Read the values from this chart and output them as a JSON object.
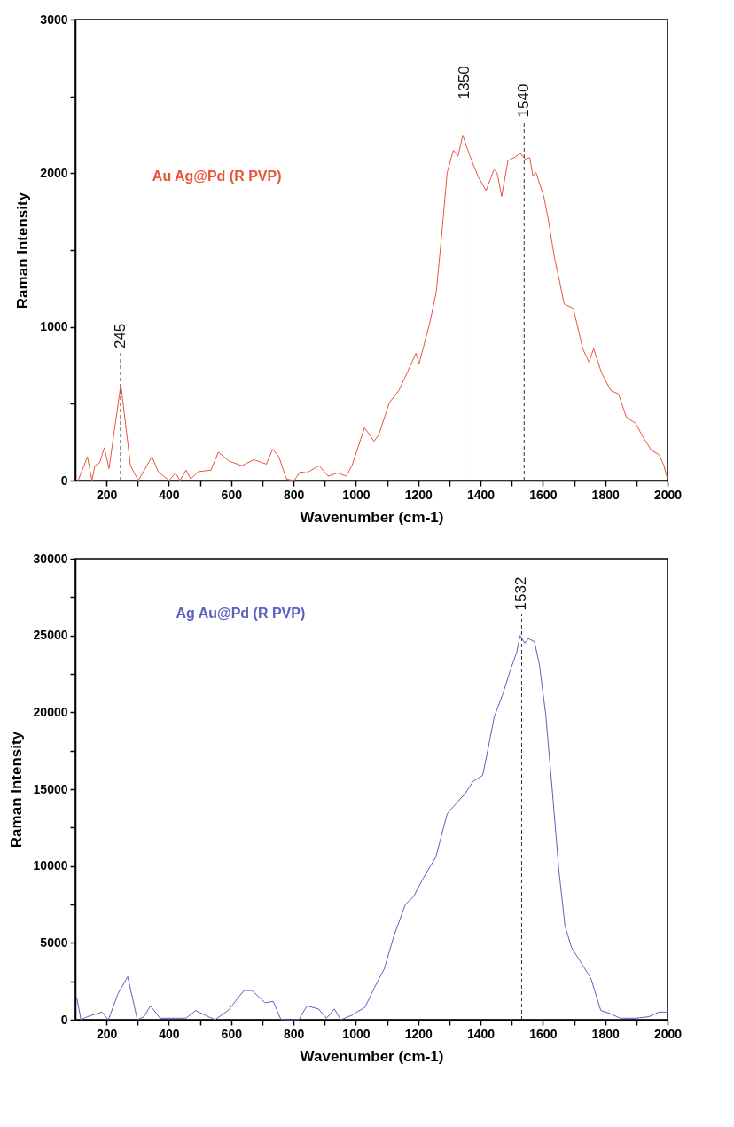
{
  "chart_data": [
    {
      "type": "line",
      "xlabel": "Wavenumber (cm-1)",
      "ylabel": "Raman Intensity",
      "xlim": [
        100,
        2000
      ],
      "ylim": [
        0,
        3000
      ],
      "xticks": [
        200,
        {
          "value": 300,
          "label": null
        },
        400,
        {
          "value": 500,
          "label": null
        },
        600,
        {
          "value": 700,
          "label": null
        },
        800,
        {
          "value": 900,
          "label": null
        },
        1000,
        {
          "value": 1100,
          "label": null
        },
        1200,
        {
          "value": 1300,
          "label": null
        },
        1400,
        {
          "value": 1500,
          "label": null
        },
        1600,
        {
          "value": 1700,
          "label": null
        },
        1800,
        {
          "value": 1900,
          "label": null
        },
        2000
      ],
      "yticks": [
        0,
        {
          "value": 500,
          "label": null
        },
        1000,
        {
          "value": 1500,
          "label": null
        },
        2000,
        {
          "value": 2500,
          "label": null
        },
        3000
      ],
      "series": [
        {
          "name": "Au Ag@Pd (R PVP)",
          "color": "#e8553a",
          "x": [
            109,
            139,
            153,
            163,
            178,
            193,
            208,
            246,
            277,
            302,
            346,
            366,
            401,
            421,
            436,
            455,
            470,
            495,
            535,
            559,
            594,
            634,
            673,
            713,
            733,
            753,
            777,
            802,
            822,
            842,
            882,
            911,
            941,
            970,
            988,
            1028,
            1058,
            1073,
            1108,
            1138,
            1178,
            1193,
            1203,
            1238,
            1258,
            1278,
            1293,
            1313,
            1328,
            1343,
            1368,
            1393,
            1418,
            1443,
            1453,
            1468,
            1488,
            1508,
            1528,
            1543,
            1558,
            1568,
            1578,
            1603,
            1618,
            1638,
            1653,
            1668,
            1698,
            1728,
            1748,
            1763,
            1788,
            1818,
            1843,
            1868,
            1898,
            1918,
            1948,
            1973,
            1988,
            1998
          ],
          "values": [
            0,
            156,
            0,
            97,
            117,
            214,
            78,
            626,
            97,
            0,
            156,
            58,
            0,
            49,
            0,
            68,
            10,
            58,
            68,
            185,
            126,
            97,
            136,
            107,
            204,
            156,
            10,
            0,
            58,
            49,
            97,
            29,
            49,
            29,
            101,
            344,
            256,
            295,
            509,
            586,
            761,
            829,
            761,
            1033,
            1227,
            1654,
            2004,
            2150,
            2111,
            2247,
            2101,
            1975,
            1887,
            2023,
            2004,
            1849,
            2082,
            2101,
            2130,
            2091,
            2101,
            1984,
            2004,
            1849,
            1693,
            1441,
            1305,
            1150,
            1120,
            858,
            771,
            858,
            703,
            586,
            563,
            412,
            373,
            295,
            198,
            169,
            101,
            23
          ]
        }
      ],
      "ref_lines": [
        {
          "axis": "x",
          "value": 245,
          "label": "245",
          "line_style": "dashed"
        },
        {
          "axis": "x",
          "value": 1350,
          "label": "1350",
          "line_style": "dashed"
        },
        {
          "axis": "x",
          "value": 1540,
          "label": "1540",
          "line_style": "dashed"
        }
      ]
    },
    {
      "type": "line",
      "xlabel": "Wavenumber (cm-1)",
      "ylabel": "Raman Intensity",
      "xlim": [
        100,
        2000
      ],
      "ylim": [
        0,
        30000
      ],
      "xticks": [
        200,
        {
          "value": 300,
          "label": null
        },
        400,
        {
          "value": 500,
          "label": null
        },
        600,
        {
          "value": 700,
          "label": null
        },
        800,
        {
          "value": 900,
          "label": null
        },
        1000,
        {
          "value": 1100,
          "label": null
        },
        1200,
        {
          "value": 1300,
          "label": null
        },
        1400,
        {
          "value": 1500,
          "label": null
        },
        1600,
        {
          "value": 1700,
          "label": null
        },
        1800,
        {
          "value": 1900,
          "label": null
        },
        2000
      ],
      "yticks": [
        0,
        {
          "value": 2500,
          "label": null
        },
        5000,
        {
          "value": 7500,
          "label": null
        },
        10000,
        {
          "value": 12500,
          "label": null
        },
        15000,
        {
          "value": 17500,
          "label": null
        },
        20000,
        {
          "value": 22500,
          "label": null
        },
        25000,
        {
          "value": 27500,
          "label": null
        },
        30000
      ],
      "series": [
        {
          "name": "Ag Au@Pd (R PVP)",
          "color": "#5a60c0",
          "x": [
            105,
            118,
            139,
            154,
            185,
            206,
            237,
            268,
            299,
            320,
            341,
            372,
            455,
            486,
            527,
            548,
            590,
            641,
            667,
            709,
            735,
            760,
            817,
            843,
            880,
            906,
            931,
            952,
            988,
            1003,
            1029,
            1060,
            1091,
            1123,
            1159,
            1185,
            1216,
            1257,
            1293,
            1319,
            1350,
            1376,
            1407,
            1423,
            1444,
            1470,
            1495,
            1516,
            1527,
            1542,
            1553,
            1573,
            1589,
            1609,
            1630,
            1651,
            1671,
            1692,
            1723,
            1754,
            1786,
            1817,
            1848,
            1900,
            1941,
            1972,
            1998
          ],
          "values": [
            1400,
            0,
            200,
            300,
            500,
            0,
            1700,
            2800,
            0,
            200,
            900,
            100,
            100,
            600,
            200,
            0,
            600,
            1900,
            1900,
            1100,
            1200,
            0,
            0,
            900,
            700,
            100,
            700,
            0,
            300,
            500,
            800,
            2100,
            3300,
            5500,
            7500,
            8000,
            9200,
            10600,
            13400,
            14000,
            14700,
            15500,
            15900,
            17500,
            19700,
            21100,
            22700,
            23900,
            25000,
            24500,
            24800,
            24600,
            23100,
            19900,
            15000,
            9800,
            6100,
            4700,
            3700,
            2700,
            600,
            400,
            100,
            100,
            200,
            500,
            500
          ]
        }
      ],
      "ref_lines": [
        {
          "axis": "x",
          "value": 1532,
          "label": "1532",
          "line_style": "dashed"
        }
      ]
    }
  ]
}
